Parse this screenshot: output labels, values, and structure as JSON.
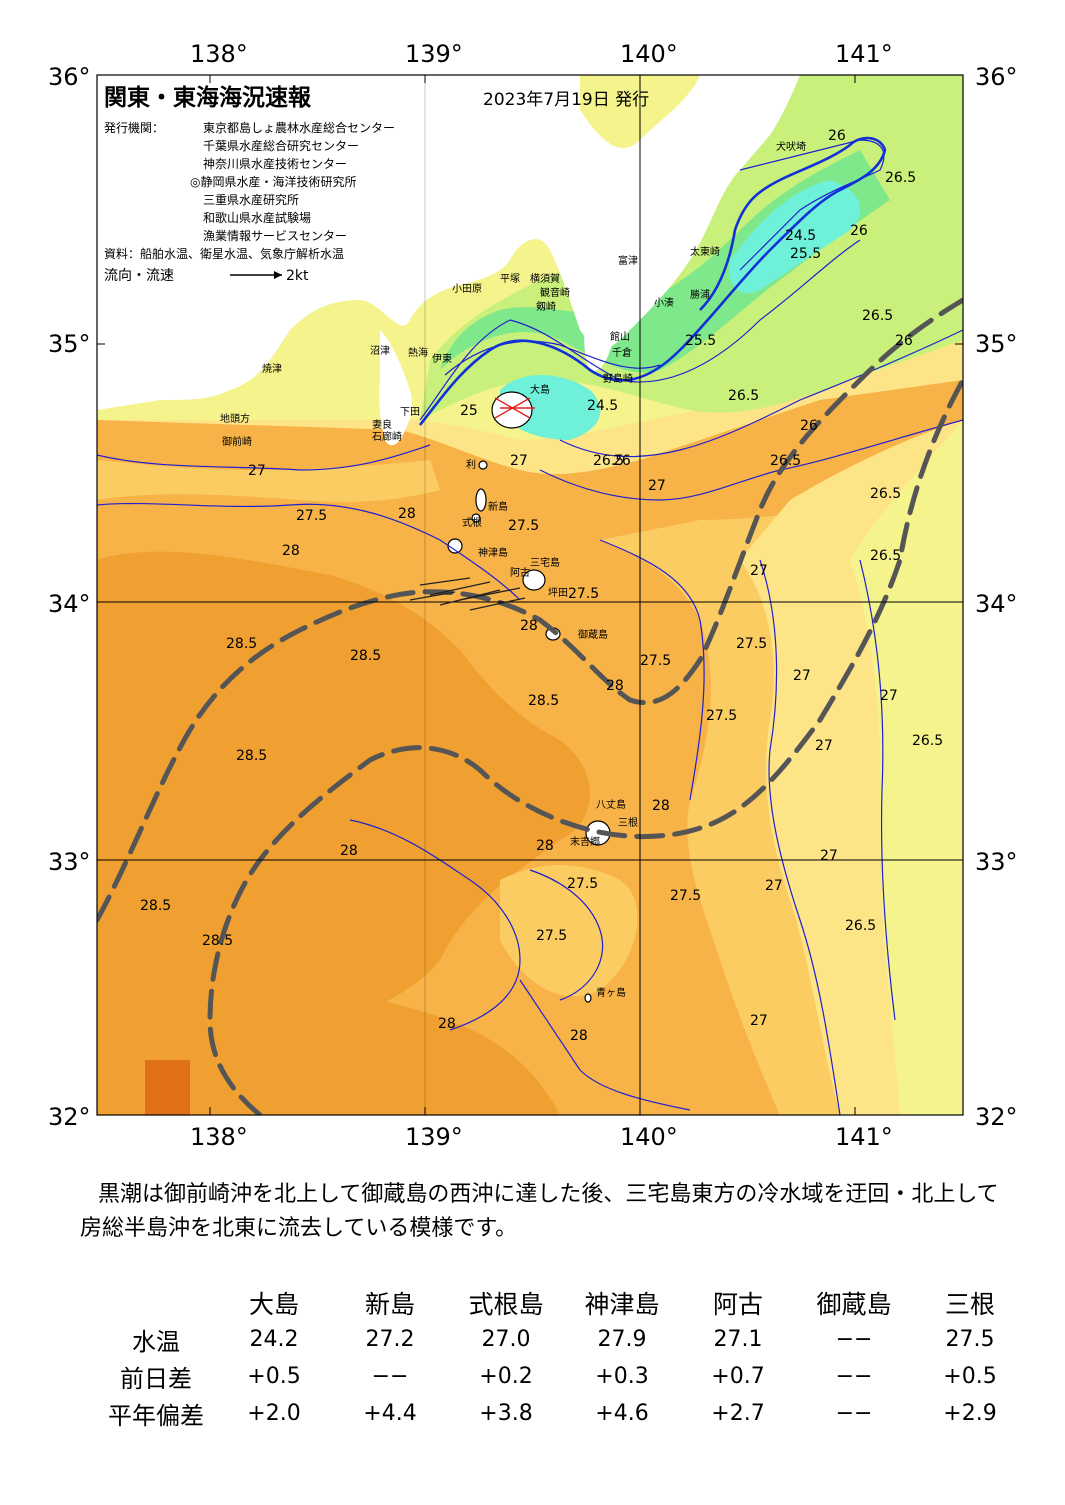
{
  "header": {
    "title": "関東・東海海況速報",
    "issue_date": "2023年7月19日 発行",
    "issuer_label": "発行機関：",
    "issuers": [
      "東京都島しょ農林水産総合センター",
      "千葉県水産総合研究センター",
      "神奈川県水産技術センター",
      "◎静岡県水産・海洋技術研究所",
      "三重県水産研究所",
      "和歌山県水産試験場",
      "漁業情報サービスセンター"
    ],
    "sources": "資料：船舶水温、衛星水温、気象庁解析水温",
    "legend_flow": "流向・流速",
    "legend_speed": "2kt"
  },
  "axes": {
    "lon_labels": [
      "138°",
      "139°",
      "140°",
      "141°"
    ],
    "lat_labels": [
      "36°",
      "35°",
      "34°",
      "33°",
      "32°"
    ]
  },
  "place_names": {
    "yaizu": "焼津",
    "numazu": "沼津",
    "ito": "伊東",
    "atami": "熱海",
    "omaezaki": "御前崎",
    "jiroudou": "地頭方",
    "shimoda": "下田",
    "mera": "妻良",
    "irozaki": "石廊崎",
    "odawara": "小田原",
    "hiratsuka": "平塚",
    "yokosuka": "横須賀",
    "kannonzaki": "観音崎",
    "tsurugizaki": "剱崎",
    "futtsu": "富津",
    "shirahama": "白浜",
    "tateyama": "館山",
    "chikura": "千倉",
    "nojimazaki": "野島崎",
    "kominato": "小湊",
    "katsuura": "勝浦",
    "taito": "太東崎",
    "inubo": "犬吠埼",
    "oshima": "大島",
    "toshima": "利",
    "niijima": "新島",
    "shikine": "式根",
    "kozu": "神津島",
    "miyake": "三宅島",
    "ako": "阿古",
    "tsubota": "坪田",
    "mikura": "御蔵島",
    "hachijo": "八丈島",
    "mitsune": "三根",
    "sueyoshi": "末吉郷",
    "aogashima": "青ヶ島"
  },
  "isotherm_labels": [
    "24.5",
    "25",
    "25.5",
    "26",
    "26.5",
    "27",
    "27.5",
    "28",
    "28.5"
  ],
  "summary": "黒潮は御前崎沖を北上して御蔵島の西沖に達した後、三宅島東方の冷水域を迂回・北上して房総半島沖を北東に流去している模様です。",
  "table": {
    "columns": [
      "大島",
      "新島",
      "式根島",
      "神津島",
      "阿古",
      "御蔵島",
      "三根"
    ],
    "rows": [
      {
        "label": "水温",
        "values": [
          "24.2",
          "27.2",
          "27.0",
          "27.9",
          "27.1",
          "−−",
          "27.5"
        ]
      },
      {
        "label": "前日差",
        "values": [
          "+0.5",
          "−−",
          "+0.2",
          "+0.3",
          "+0.7",
          "−−",
          "+0.5"
        ]
      },
      {
        "label": "平年偏差",
        "values": [
          "+2.0",
          "+4.4",
          "+3.8",
          "+4.6",
          "+2.7",
          "−−",
          "+2.9"
        ]
      }
    ]
  },
  "colors": {
    "t28_5": "#f0a030",
    "t28": "#f7b248",
    "t27_5": "#fbcc62",
    "t27": "#fde487",
    "t26_5": "#f5f38c",
    "t26": "#c8f07a",
    "t25": "#7fe88a",
    "t24": "#6ff0d8",
    "land": "#ffffff",
    "isotherm": "#2020d0",
    "kuroshio": "#555555"
  }
}
